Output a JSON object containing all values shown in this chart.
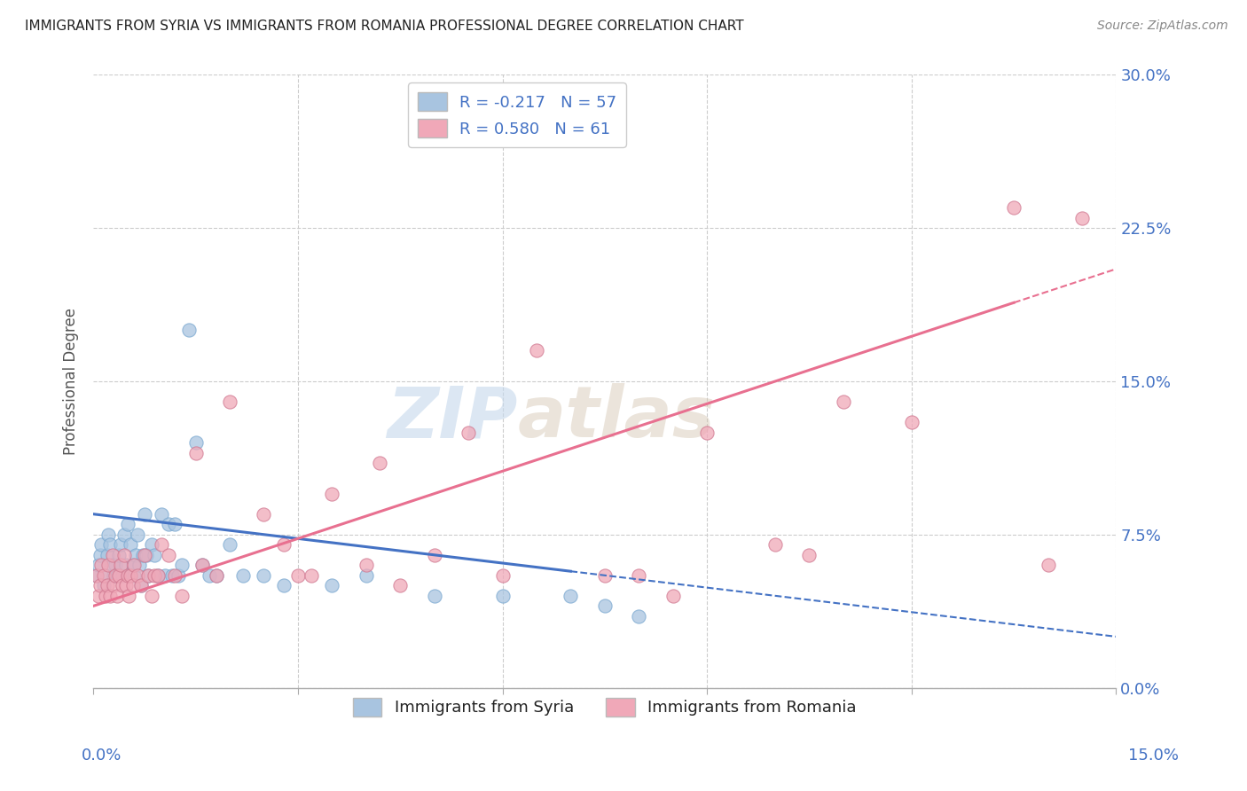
{
  "title": "IMMIGRANTS FROM SYRIA VS IMMIGRANTS FROM ROMANIA PROFESSIONAL DEGREE CORRELATION CHART",
  "source_text": "Source: ZipAtlas.com",
  "ylabel": "Professional Degree",
  "watermark_zip": "ZIP",
  "watermark_atlas": "atlas",
  "legend_syria": "R = -0.217   N = 57",
  "legend_romania": "R = 0.580   N = 61",
  "legend_label_syria": "Immigrants from Syria",
  "legend_label_romania": "Immigrants from Romania",
  "color_syria": "#a8c4e0",
  "color_romania": "#f0a8b8",
  "color_trendline_syria": "#4472c4",
  "color_trendline_romania": "#e87090",
  "xlim": [
    0.0,
    15.0
  ],
  "ylim": [
    0.0,
    30.0
  ],
  "xticks": [
    0.0,
    3.0,
    6.0,
    9.0,
    12.0,
    15.0
  ],
  "yticks": [
    0.0,
    7.5,
    15.0,
    22.5,
    30.0
  ],
  "syria_x": [
    0.05,
    0.08,
    0.1,
    0.12,
    0.15,
    0.18,
    0.2,
    0.22,
    0.25,
    0.28,
    0.3,
    0.32,
    0.35,
    0.38,
    0.4,
    0.42,
    0.45,
    0.48,
    0.5,
    0.52,
    0.55,
    0.58,
    0.6,
    0.62,
    0.65,
    0.68,
    0.7,
    0.72,
    0.75,
    0.78,
    0.8,
    0.85,
    0.9,
    0.95,
    1.0,
    1.05,
    1.1,
    1.15,
    1.2,
    1.25,
    1.3,
    1.4,
    1.5,
    1.6,
    1.7,
    1.8,
    2.0,
    2.2,
    2.5,
    2.8,
    3.5,
    4.0,
    5.0,
    6.0,
    7.0,
    7.5,
    8.0
  ],
  "syria_y": [
    5.5,
    6.0,
    6.5,
    7.0,
    5.0,
    5.5,
    6.5,
    7.5,
    7.0,
    6.0,
    5.5,
    6.0,
    5.5,
    6.5,
    7.0,
    5.5,
    7.5,
    6.0,
    8.0,
    5.5,
    7.0,
    6.0,
    5.5,
    6.5,
    7.5,
    6.0,
    5.0,
    6.5,
    8.5,
    6.5,
    5.5,
    7.0,
    6.5,
    5.5,
    8.5,
    5.5,
    8.0,
    5.5,
    8.0,
    5.5,
    6.0,
    17.5,
    12.0,
    6.0,
    5.5,
    5.5,
    7.0,
    5.5,
    5.5,
    5.0,
    5.0,
    5.5,
    4.5,
    4.5,
    4.5,
    4.0,
    3.5
  ],
  "romania_x": [
    0.05,
    0.08,
    0.1,
    0.12,
    0.15,
    0.18,
    0.2,
    0.22,
    0.25,
    0.28,
    0.3,
    0.32,
    0.35,
    0.38,
    0.4,
    0.42,
    0.45,
    0.48,
    0.5,
    0.52,
    0.55,
    0.58,
    0.6,
    0.65,
    0.7,
    0.75,
    0.8,
    0.85,
    0.9,
    0.95,
    1.0,
    1.1,
    1.2,
    1.3,
    1.5,
    1.6,
    1.8,
    2.0,
    2.5,
    3.0,
    3.5,
    4.0,
    5.0,
    5.5,
    6.5,
    8.0,
    9.0,
    10.0,
    11.0,
    13.5,
    14.0,
    4.5,
    2.8,
    3.2,
    4.2,
    6.0,
    7.5,
    8.5,
    10.5,
    12.0,
    14.5
  ],
  "romania_y": [
    5.5,
    4.5,
    5.0,
    6.0,
    5.5,
    4.5,
    5.0,
    6.0,
    4.5,
    6.5,
    5.0,
    5.5,
    4.5,
    5.5,
    6.0,
    5.0,
    6.5,
    5.0,
    5.5,
    4.5,
    5.5,
    5.0,
    6.0,
    5.5,
    5.0,
    6.5,
    5.5,
    4.5,
    5.5,
    5.5,
    7.0,
    6.5,
    5.5,
    4.5,
    11.5,
    6.0,
    5.5,
    14.0,
    8.5,
    5.5,
    9.5,
    6.0,
    6.5,
    12.5,
    16.5,
    5.5,
    12.5,
    7.0,
    14.0,
    23.5,
    6.0,
    5.0,
    7.0,
    5.5,
    11.0,
    5.5,
    5.5,
    4.5,
    6.5,
    13.0,
    23.0
  ],
  "trendline_syria_x0": 0.0,
  "trendline_syria_x1": 15.0,
  "trendline_syria_y0": 8.5,
  "trendline_syria_y1": 2.5,
  "trendline_romania_x0": 0.0,
  "trendline_romania_x1": 15.0,
  "trendline_romania_y0": 4.0,
  "trendline_romania_y1": 20.5,
  "trendline_syria_solid_x1": 7.0,
  "trendline_romania_solid_x1": 13.5,
  "background_color": "#ffffff",
  "grid_color": "#cccccc",
  "title_color": "#222222",
  "tick_color": "#4472c4"
}
